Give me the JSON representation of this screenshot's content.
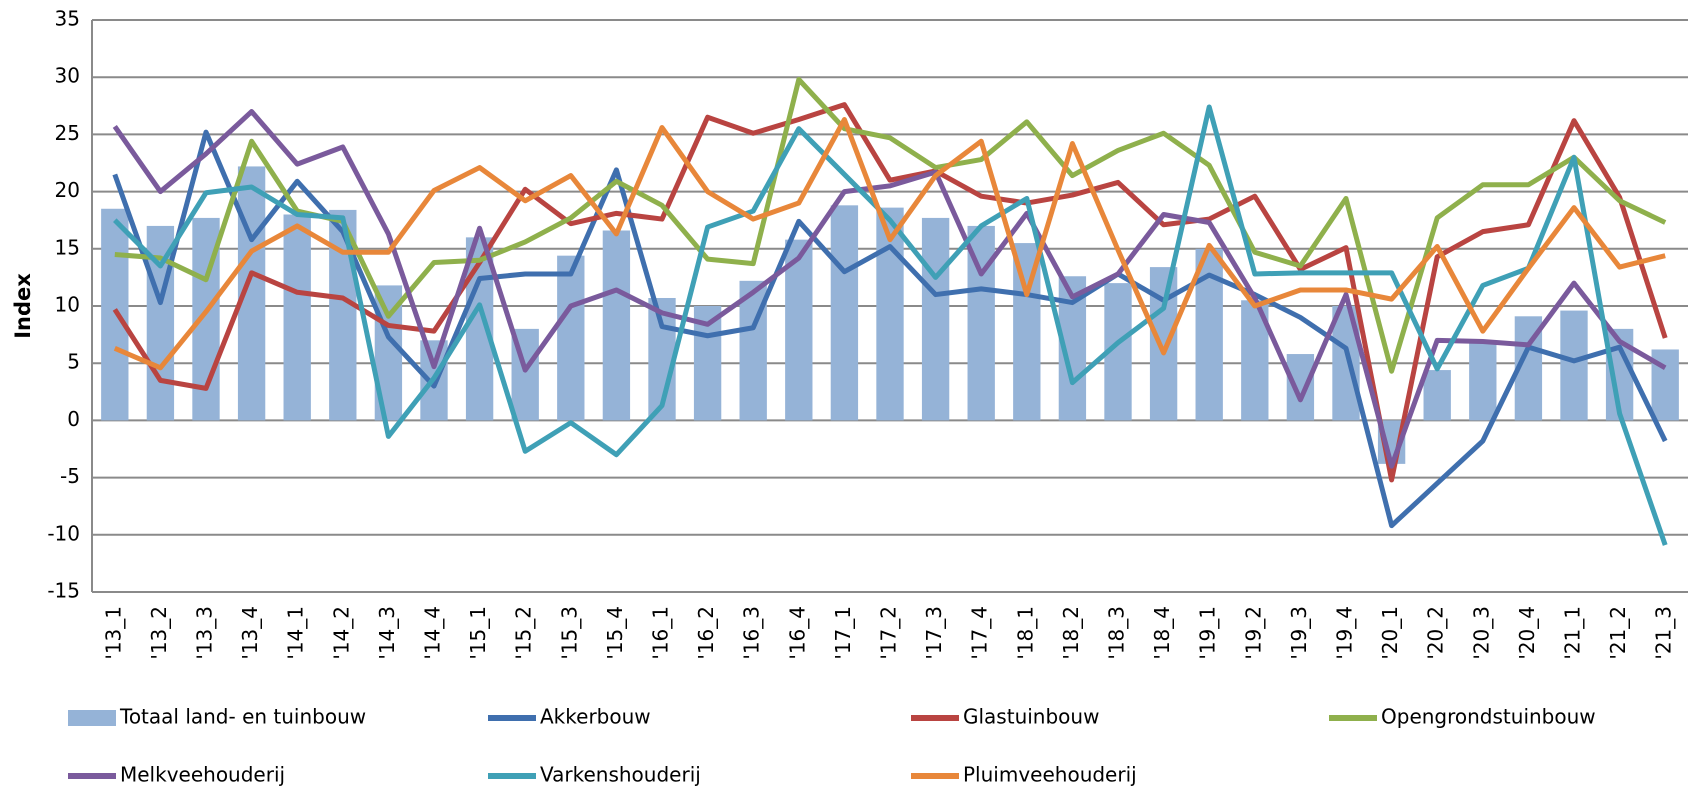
{
  "chart_data": {
    "type": "bar-line",
    "y_label": "Index",
    "categories": [
      "'13_1",
      "'13_2",
      "'13_3",
      "'13_4",
      "'14_1",
      "'14_2",
      "'14_3",
      "'14_4",
      "'15_1",
      "'15_2",
      "'15_3",
      "'15_4",
      "'16_1",
      "'16_2",
      "'16_3",
      "'16_4",
      "'17_1",
      "'17_2",
      "'17_3",
      "'17_4",
      "'18_1",
      "'18_2",
      "'18_3",
      "'18_4",
      "'19_1",
      "'19_2",
      "'19_3",
      "'19_4",
      "'20_1",
      "'20_2",
      "'20_3",
      "'20_4",
      "'21_1",
      "'21_2",
      "'21_3"
    ],
    "ylim": [
      -15,
      35
    ],
    "yticks": [
      -15,
      -10,
      -5,
      0,
      5,
      10,
      15,
      20,
      25,
      30,
      35
    ],
    "grid": true,
    "series": [
      {
        "name": "Totaal land- en tuinbouw",
        "kind": "bar",
        "color": "#95b3d7",
        "values": [
          18.5,
          17,
          17.7,
          22.2,
          18,
          18.4,
          11.8,
          7,
          16,
          8,
          14.4,
          16.6,
          10.7,
          10,
          12.2,
          15.8,
          18.8,
          18.6,
          17.7,
          17,
          15.5,
          12.6,
          12,
          13.4,
          15,
          10.5,
          5.8,
          10,
          -3.8,
          4.4,
          6.8,
          9.1,
          9.6,
          8,
          6.2
        ]
      },
      {
        "name": "Akkerbouw",
        "kind": "line",
        "color": "#3f6fae",
        "values": [
          21.5,
          10.3,
          25.2,
          15.8,
          20.9,
          16.5,
          7.3,
          3,
          12.4,
          12.8,
          12.8,
          21.9,
          8.2,
          7.4,
          8.1,
          17.4,
          13,
          15.2,
          11,
          11.5,
          11,
          10.3,
          12.8,
          10.5,
          12.7,
          11,
          9,
          6.3,
          -9.2,
          -5.5,
          -1.8,
          6.4,
          5.2,
          6.4,
          -1.8
        ]
      },
      {
        "name": "Glastuinbouw",
        "kind": "line",
        "color": "#b94441",
        "values": [
          9.7,
          3.5,
          2.8,
          12.9,
          11.2,
          10.7,
          8.3,
          7.8,
          13.8,
          20.2,
          17.2,
          18.1,
          17.6,
          26.5,
          25.1,
          26.3,
          27.6,
          21,
          21.8,
          19.6,
          19,
          19.7,
          20.8,
          17.1,
          17.6,
          19.6,
          13.2,
          15.1,
          -5.2,
          14.3,
          16.5,
          17.1,
          26.2,
          19.5,
          7.2
        ]
      },
      {
        "name": "Opengrondstuinbouw",
        "kind": "line",
        "color": "#8fb04c",
        "values": [
          14.5,
          14.2,
          12.3,
          24.4,
          18.3,
          17.4,
          9.1,
          13.8,
          14,
          15.6,
          17.7,
          20.9,
          18.8,
          14.1,
          13.7,
          29.8,
          25.5,
          24.7,
          22.1,
          22.8,
          26.1,
          21.4,
          23.6,
          25.1,
          22.3,
          14.7,
          13.5,
          19.4,
          4.3,
          17.7,
          20.6,
          20.6,
          23,
          19.2,
          17.3
        ]
      },
      {
        "name": "Melkveehouderij",
        "kind": "line",
        "color": "#7a5a9c",
        "values": [
          25.7,
          20,
          23.3,
          27,
          22.4,
          23.9,
          16.3,
          4.7,
          16.8,
          4.4,
          10,
          11.4,
          9.4,
          8.4,
          11.2,
          14.2,
          20,
          20.5,
          21.7,
          12.8,
          18.1,
          10.8,
          12.8,
          18,
          17.3,
          10.7,
          1.8,
          11,
          -4,
          7,
          6.9,
          6.6,
          12,
          6.9,
          4.6
        ]
      },
      {
        "name": "Varkenshouderij",
        "kind": "line",
        "color": "#3fa0b6",
        "values": [
          17.5,
          13.5,
          19.9,
          20.4,
          18,
          17.7,
          -1.4,
          3.7,
          10.1,
          -2.7,
          -0.2,
          -3,
          1.3,
          16.9,
          18.3,
          25.5,
          21.5,
          17.5,
          12.5,
          17,
          19.4,
          3.3,
          6.8,
          9.8,
          27.4,
          12.8,
          12.9,
          12.9,
          12.9,
          4.5,
          11.8,
          13.3,
          23,
          0.6,
          -10.9
        ]
      },
      {
        "name": "Pluimveehouderij",
        "kind": "line",
        "color": "#e8873a",
        "values": [
          6.3,
          4.6,
          9.5,
          14.8,
          17,
          14.7,
          14.7,
          20.1,
          22.1,
          19.2,
          21.4,
          16.3,
          25.6,
          20,
          17.6,
          19,
          26.3,
          15.8,
          21.4,
          24.4,
          11,
          24.2,
          14.9,
          5.9,
          15.3,
          10,
          11.4,
          11.4,
          10.6,
          15.2,
          7.8,
          13.3,
          18.6,
          13.4,
          14.4
        ]
      }
    ]
  }
}
